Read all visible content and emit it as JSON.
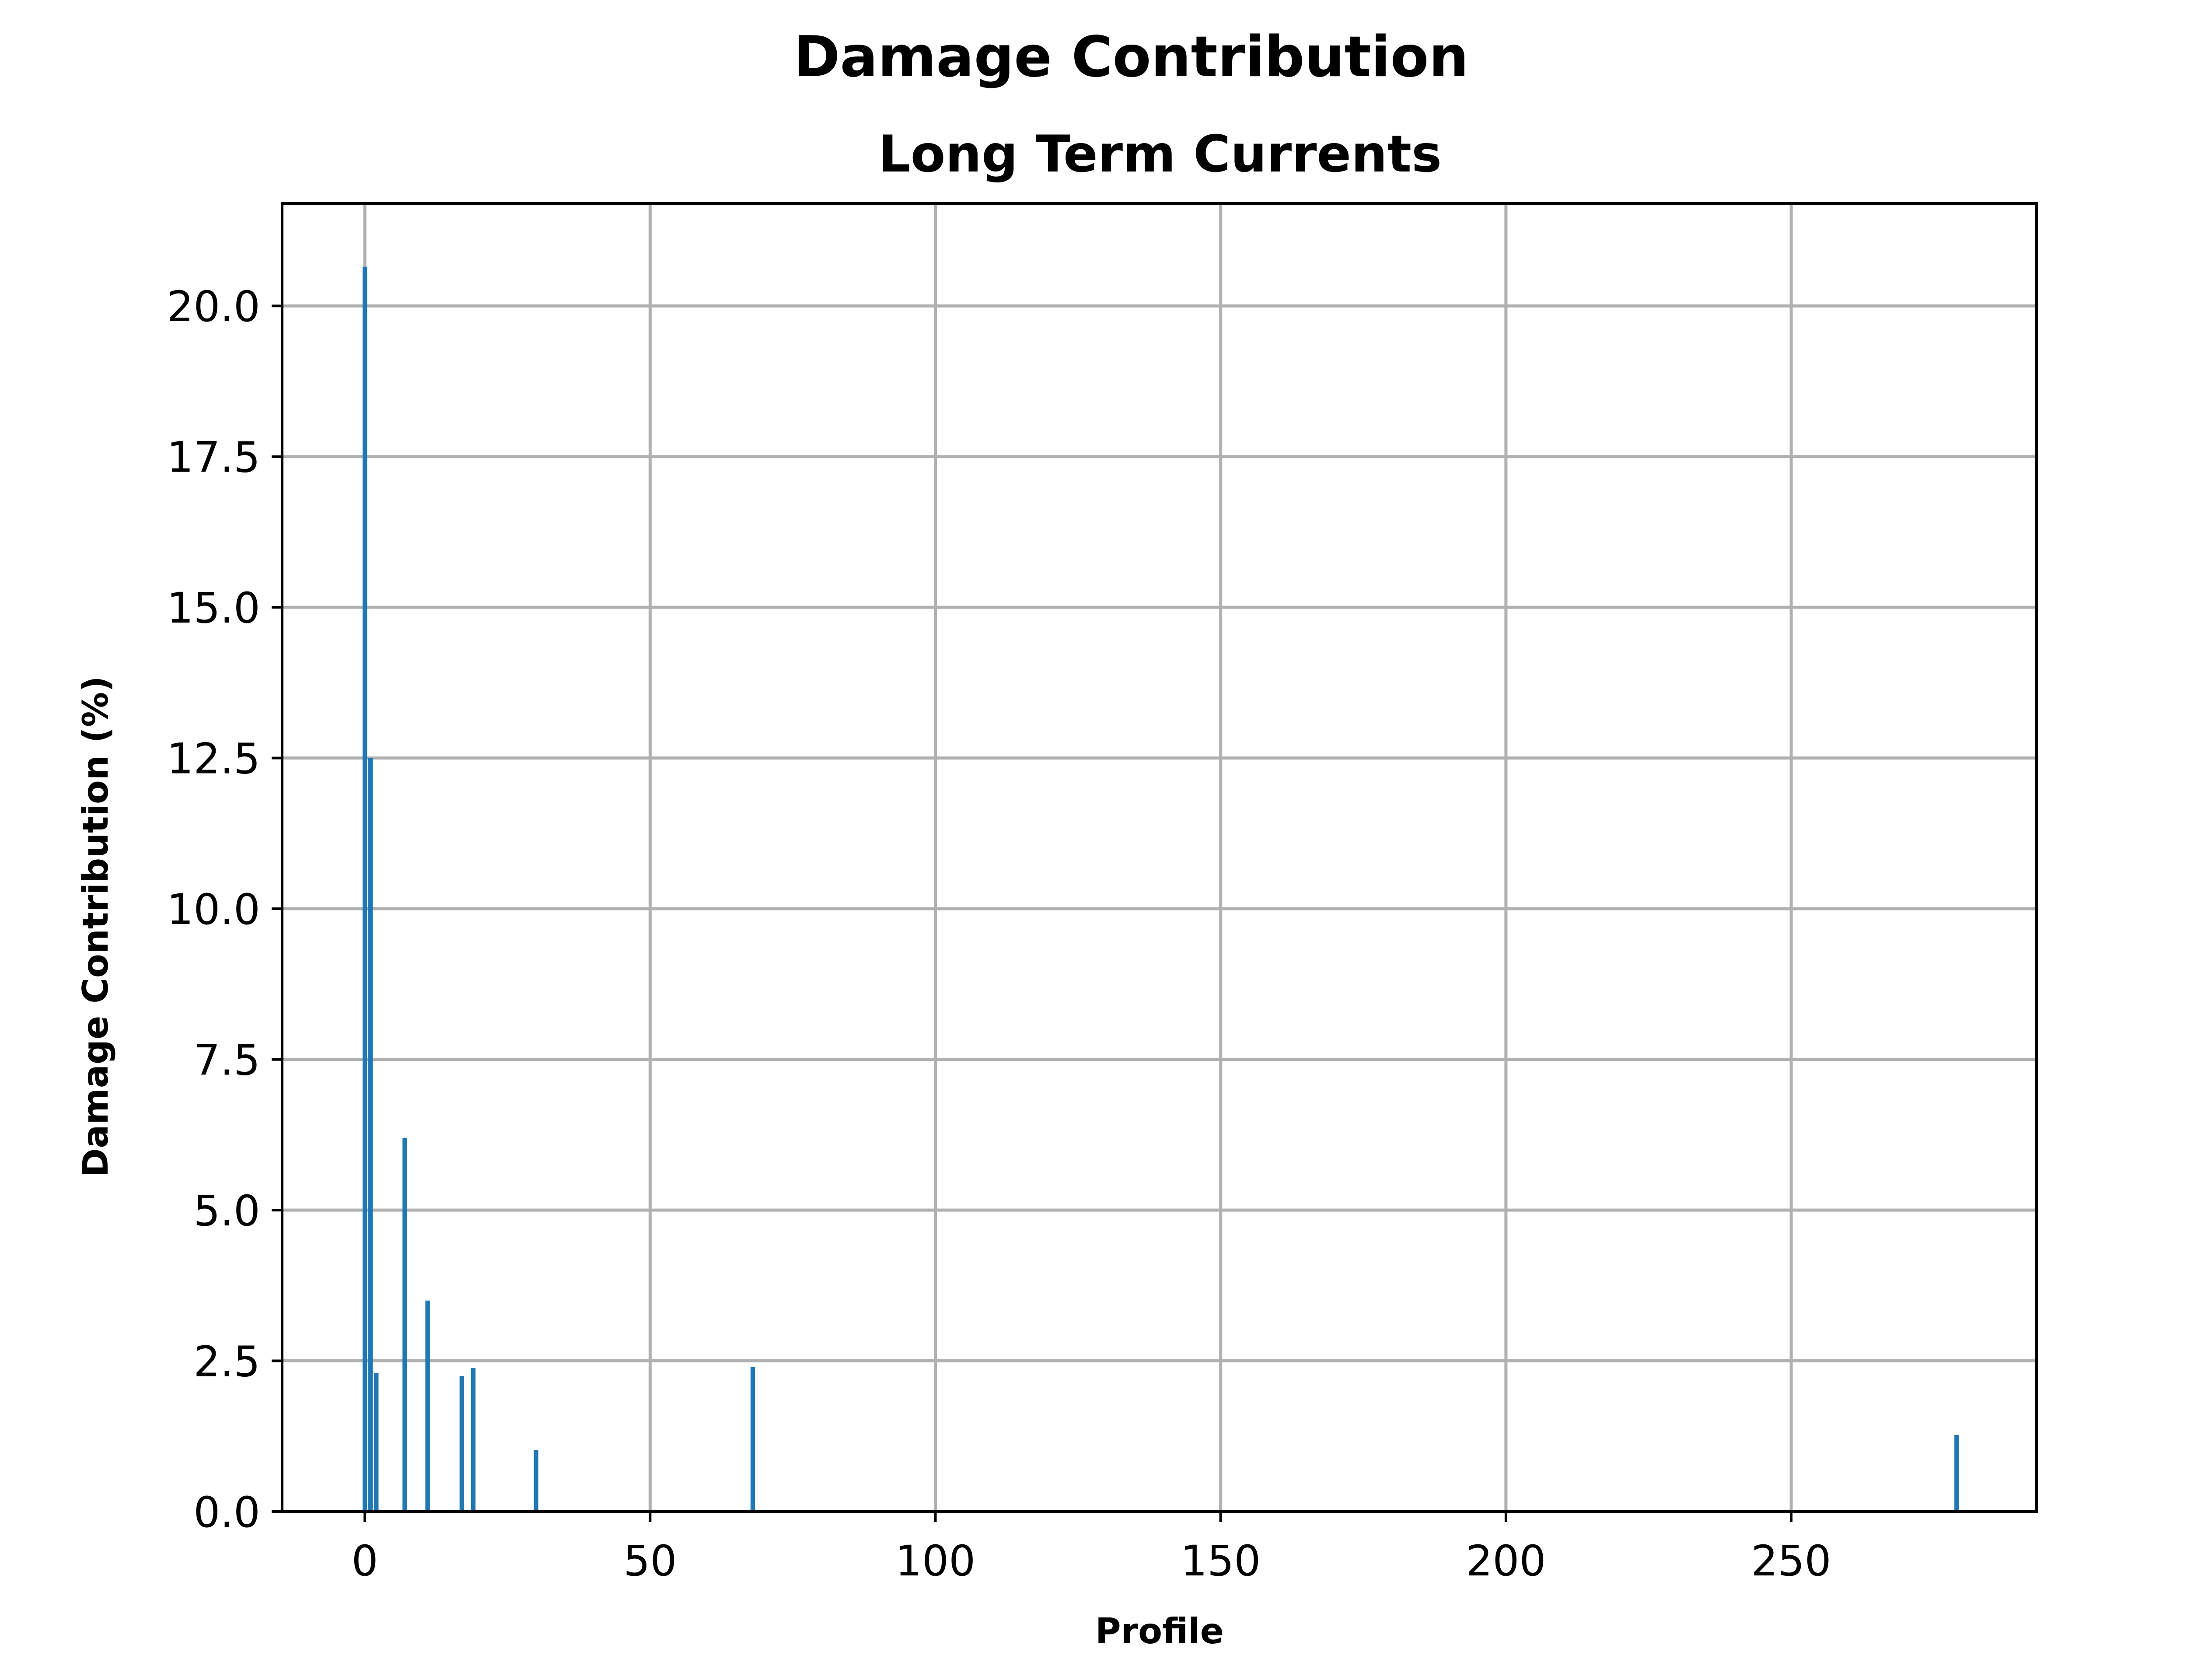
{
  "chart_data": {
    "type": "bar",
    "title": "Damage Contribution",
    "subtitle": "Long Term Currents",
    "xlabel": "Profile",
    "ylabel": "Damage Contribution (%)",
    "xlim": [
      -14.5,
      293
    ],
    "ylim": [
      0,
      21.7
    ],
    "xticks": [
      0,
      50,
      100,
      150,
      200,
      250
    ],
    "yticks": [
      0.0,
      2.5,
      5.0,
      7.5,
      10.0,
      12.5,
      15.0,
      17.5,
      20.0
    ],
    "xtick_labels": [
      "0",
      "50",
      "100",
      "150",
      "200",
      "250"
    ],
    "ytick_labels": [
      "0.0",
      "2.5",
      "5.0",
      "7.5",
      "10.0",
      "12.5",
      "15.0",
      "17.5",
      "20.0"
    ],
    "grid": true,
    "bar_color": "#1f77b4",
    "x": [
      0,
      1,
      2,
      7,
      11,
      17,
      19,
      30,
      68,
      279
    ],
    "values": [
      20.65,
      12.5,
      2.3,
      6.2,
      3.5,
      2.25,
      2.38,
      1.02,
      2.4,
      1.27
    ]
  }
}
